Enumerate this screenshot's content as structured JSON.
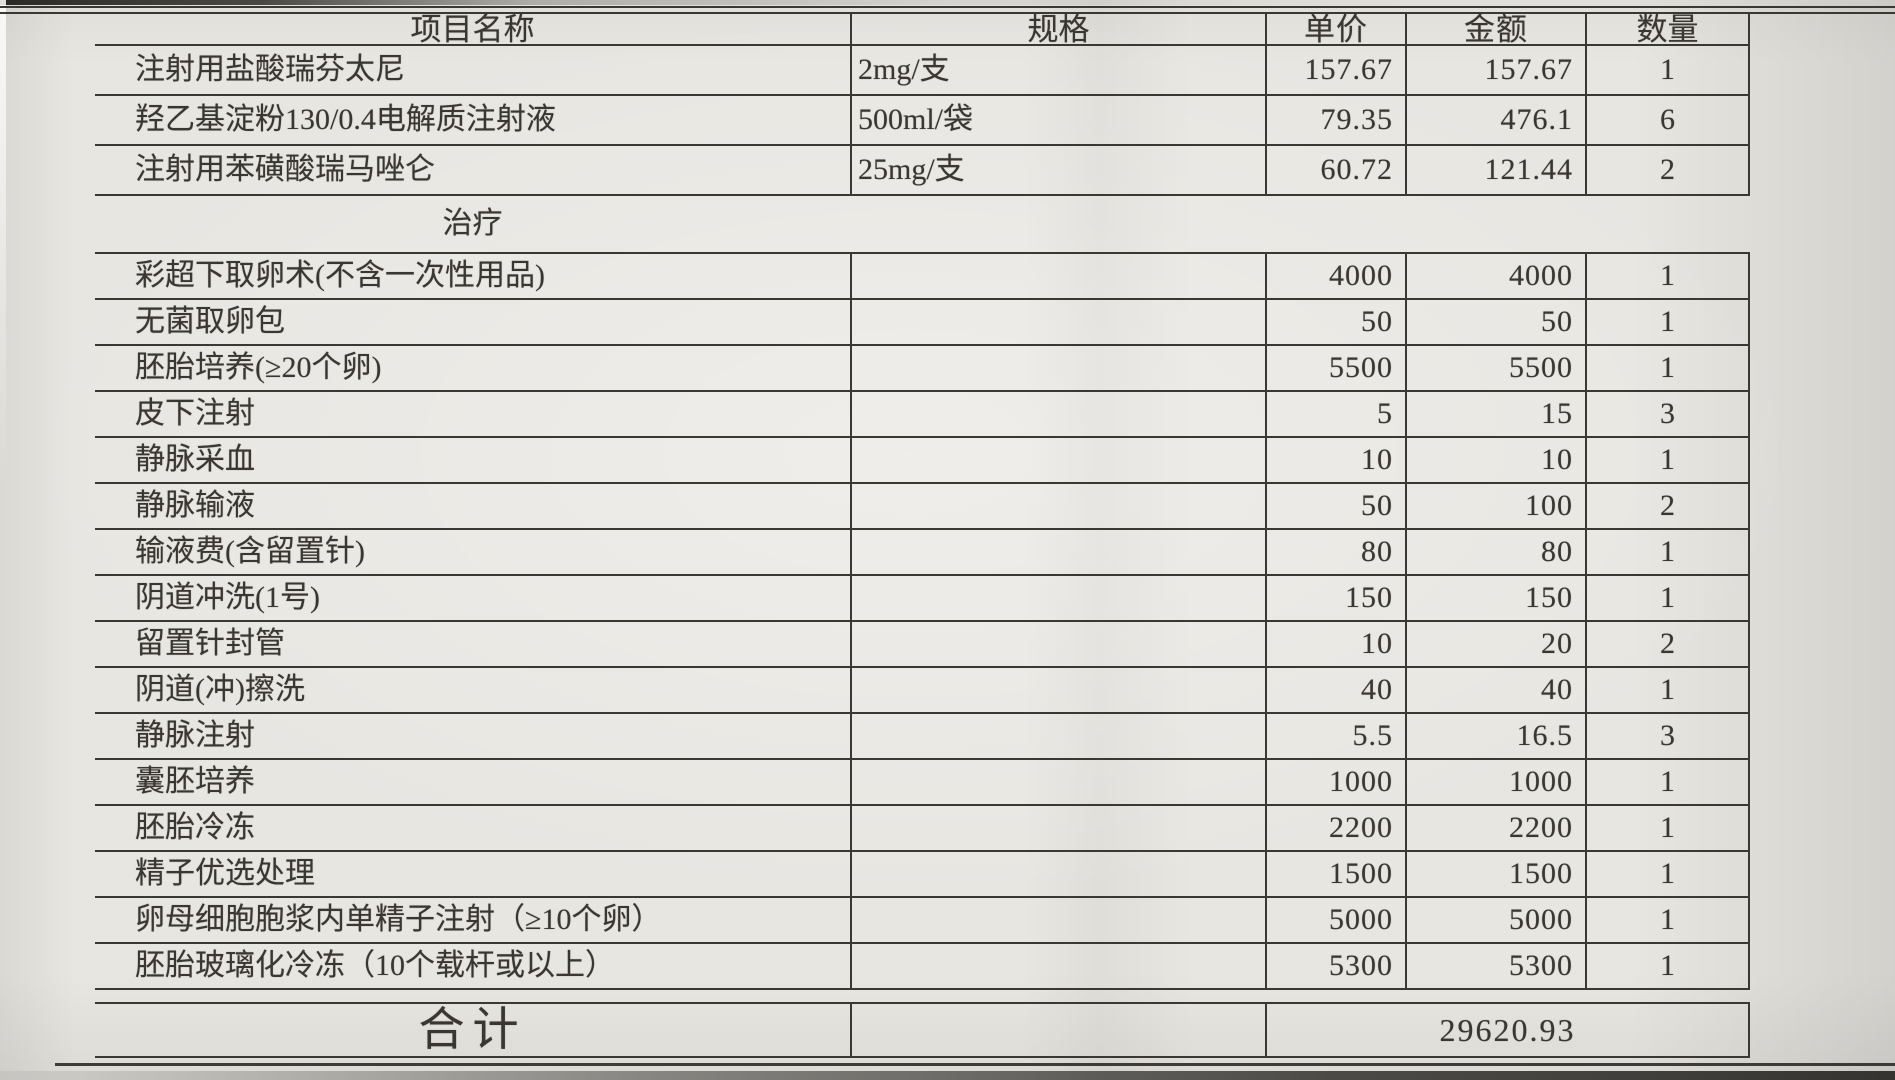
{
  "table": {
    "columns": {
      "name": "项目名称",
      "spec": "规格",
      "unit_price": "单价",
      "amount": "金额",
      "qty": "数量"
    },
    "rows": [
      {
        "type": "item",
        "name": "注射用盐酸瑞芬太尼",
        "spec": "2mg/支",
        "unit_price": "157.67",
        "amount": "157.67",
        "qty": "1"
      },
      {
        "type": "item",
        "name": "羟乙基淀粉130/0.4电解质注射液",
        "spec": "500ml/袋",
        "unit_price": "79.35",
        "amount": "476.1",
        "qty": "6"
      },
      {
        "type": "item",
        "name": "注射用苯磺酸瑞马唑仑",
        "spec": "25mg/支",
        "unit_price": "60.72",
        "amount": "121.44",
        "qty": "2"
      },
      {
        "type": "section",
        "name": "治疗"
      },
      {
        "type": "item",
        "name": "彩超下取卵术(不含一次性用品)",
        "spec": "",
        "unit_price": "4000",
        "amount": "4000",
        "qty": "1"
      },
      {
        "type": "item",
        "name": "无菌取卵包",
        "spec": "",
        "unit_price": "50",
        "amount": "50",
        "qty": "1"
      },
      {
        "type": "item",
        "name": "胚胎培养(≥20个卵)",
        "spec": "",
        "unit_price": "5500",
        "amount": "5500",
        "qty": "1"
      },
      {
        "type": "item",
        "name": "皮下注射",
        "spec": "",
        "unit_price": "5",
        "amount": "15",
        "qty": "3"
      },
      {
        "type": "item",
        "name": "静脉采血",
        "spec": "",
        "unit_price": "10",
        "amount": "10",
        "qty": "1"
      },
      {
        "type": "item",
        "name": "静脉输液",
        "spec": "",
        "unit_price": "50",
        "amount": "100",
        "qty": "2"
      },
      {
        "type": "item",
        "name": "输液费(含留置针)",
        "spec": "",
        "unit_price": "80",
        "amount": "80",
        "qty": "1"
      },
      {
        "type": "item",
        "name": "阴道冲洗(1号)",
        "spec": "",
        "unit_price": "150",
        "amount": "150",
        "qty": "1"
      },
      {
        "type": "item",
        "name": "留置针封管",
        "spec": "",
        "unit_price": "10",
        "amount": "20",
        "qty": "2"
      },
      {
        "type": "item",
        "name": "阴道(冲)擦洗",
        "spec": "",
        "unit_price": "40",
        "amount": "40",
        "qty": "1"
      },
      {
        "type": "item",
        "name": "静脉注射",
        "spec": "",
        "unit_price": "5.5",
        "amount": "16.5",
        "qty": "3"
      },
      {
        "type": "item",
        "name": "囊胚培养",
        "spec": "",
        "unit_price": "1000",
        "amount": "1000",
        "qty": "1"
      },
      {
        "type": "item",
        "name": "胚胎冷冻",
        "spec": "",
        "unit_price": "2200",
        "amount": "2200",
        "qty": "1"
      },
      {
        "type": "item",
        "name": "精子优选处理",
        "spec": "",
        "unit_price": "1500",
        "amount": "1500",
        "qty": "1"
      },
      {
        "type": "item",
        "name": "卵母细胞胞浆内单精子注射（≥10个卵）",
        "spec": "",
        "unit_price": "5000",
        "amount": "5000",
        "qty": "1"
      },
      {
        "type": "item",
        "name": "胚胎玻璃化冷冻（10个载杆或以上）",
        "spec": "",
        "unit_price": "5300",
        "amount": "5300",
        "qty": "1"
      }
    ],
    "total_label": "合计",
    "total_value": "29620.93"
  },
  "colors": {
    "paper": "#e8e6e1",
    "ink": "#3a3631",
    "line": "#3b3731"
  }
}
